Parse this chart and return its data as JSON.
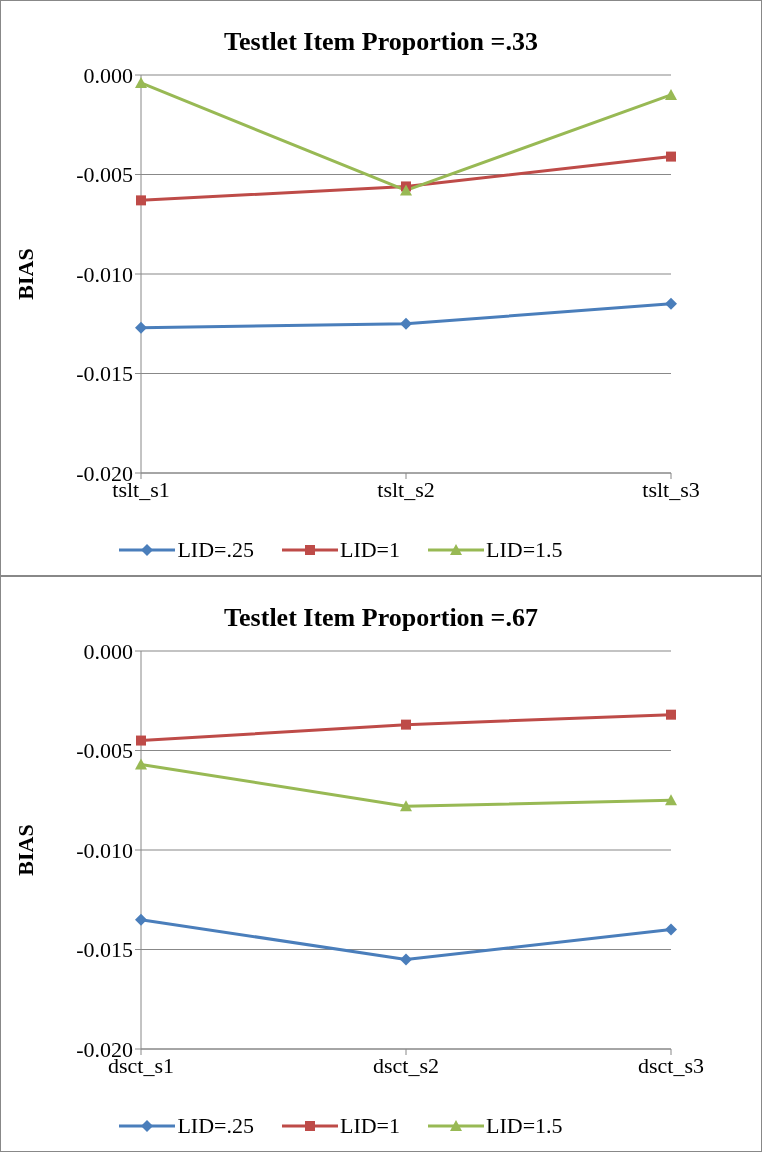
{
  "chart_data": [
    {
      "type": "line",
      "title": "Testlet Item Proportion =.33",
      "ylabel": "BIAS",
      "categories": [
        "tslt_s1",
        "tslt_s2",
        "tslt_s3"
      ],
      "series": [
        {
          "name": "LID=.25",
          "color": "#4a7ebb",
          "marker": "diamond",
          "values": [
            -0.0127,
            -0.0125,
            -0.0115
          ]
        },
        {
          "name": "LID=1",
          "color": "#be4b48",
          "marker": "square",
          "values": [
            -0.0063,
            -0.0056,
            -0.0041
          ]
        },
        {
          "name": "LID=1.5",
          "color": "#98b954",
          "marker": "triangle",
          "values": [
            -0.0004,
            -0.0058,
            -0.001
          ]
        }
      ],
      "ylim": [
        -0.02,
        0
      ],
      "yticks": [
        {
          "value": 0,
          "label": "0.000"
        },
        {
          "value": -0.005,
          "label": "-0.005"
        },
        {
          "value": -0.01,
          "label": "-0.010"
        },
        {
          "value": -0.015,
          "label": "-0.015"
        },
        {
          "value": -0.02,
          "label": "-0.020"
        }
      ],
      "grid": "y",
      "legend": "bottom"
    },
    {
      "type": "line",
      "title": "Testlet Item Proportion =.67",
      "ylabel": "BIAS",
      "categories": [
        "dsct_s1",
        "dsct_s2",
        "dsct_s3"
      ],
      "series": [
        {
          "name": "LID=.25",
          "color": "#4a7ebb",
          "marker": "diamond",
          "values": [
            -0.0135,
            -0.0155,
            -0.014
          ]
        },
        {
          "name": "LID=1",
          "color": "#be4b48",
          "marker": "square",
          "values": [
            -0.0045,
            -0.0037,
            -0.0032
          ]
        },
        {
          "name": "LID=1.5",
          "color": "#98b954",
          "marker": "triangle",
          "values": [
            -0.0057,
            -0.0078,
            -0.0075
          ]
        }
      ],
      "ylim": [
        -0.02,
        0
      ],
      "yticks": [
        {
          "value": 0,
          "label": "0.000"
        },
        {
          "value": -0.005,
          "label": "-0.005"
        },
        {
          "value": -0.01,
          "label": "-0.010"
        },
        {
          "value": -0.015,
          "label": "-0.015"
        },
        {
          "value": -0.02,
          "label": "-0.020"
        }
      ],
      "grid": "y",
      "legend": "bottom"
    }
  ]
}
